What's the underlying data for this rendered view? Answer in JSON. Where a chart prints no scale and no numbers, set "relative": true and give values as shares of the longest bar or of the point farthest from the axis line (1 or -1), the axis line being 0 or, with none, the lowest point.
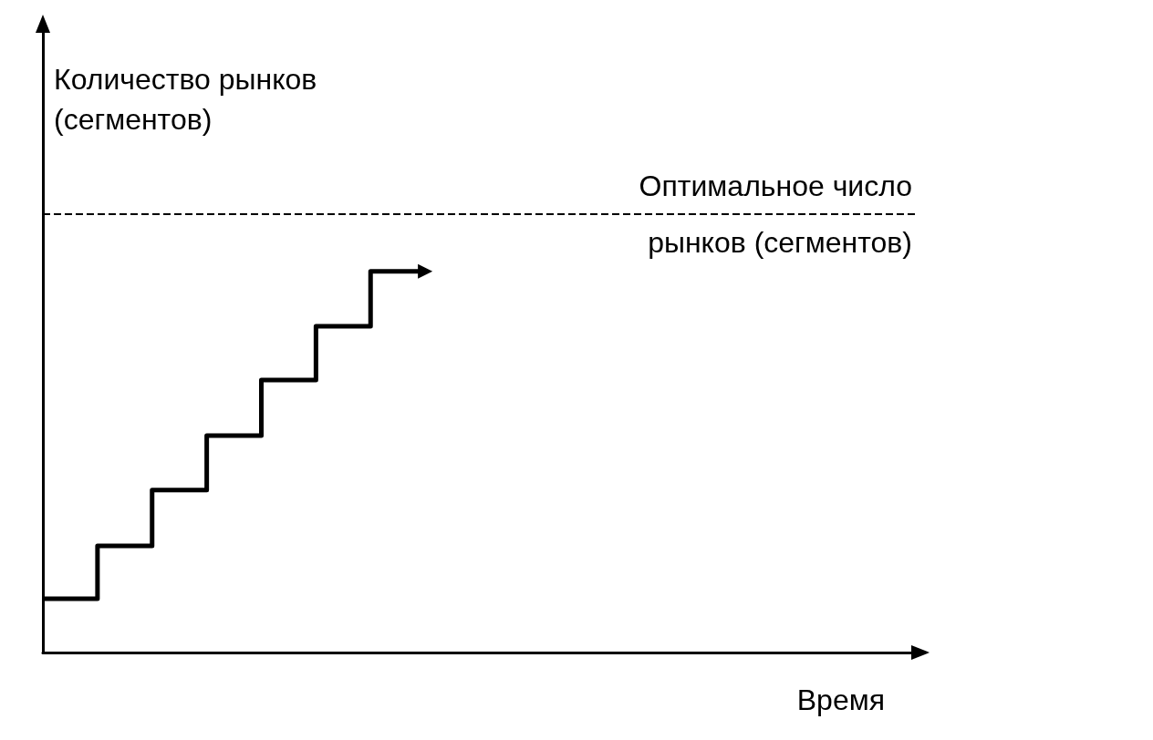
{
  "chart_data": {
    "type": "step",
    "relative": true,
    "xlabel": "Время",
    "ylabel": "Количество рынков\n(сегментов)",
    "categories": [
      null,
      null,
      null,
      null,
      null,
      null,
      null,
      null,
      null,
      null,
      null,
      null,
      null,
      null,
      null,
      null,
      null
    ],
    "series": [
      {
        "color": "#000000",
        "values": [
          0.141,
          0.141,
          0.28,
          0.426,
          0.569,
          0.715,
          0.856,
          1,
          null,
          null,
          null,
          null,
          null,
          null,
          null,
          null,
          null
        ]
      }
    ],
    "ref_lines": [
      {
        "axis": "y",
        "value": 1.146,
        "label": "Оптимальное число\nрынков (сегментов)",
        "color": "#000000",
        "line_style": "dashed"
      }
    ],
    "grid": false,
    "marker": "none",
    "line_style": "solid"
  }
}
